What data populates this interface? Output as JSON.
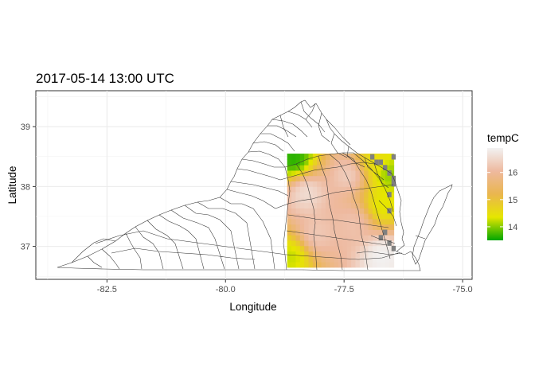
{
  "title": "2017-05-14 13:00 UTC",
  "xlabel": "Longitude",
  "ylabel": "Latitude",
  "x_ticks": [
    -82.5,
    -80.0,
    -77.5,
    -75.0
  ],
  "x_tick_labels": [
    "-82.5",
    "-80.0",
    "-77.5",
    "-75.0"
  ],
  "y_ticks": [
    37,
    38,
    39
  ],
  "y_tick_labels": [
    "37",
    "38",
    "39"
  ],
  "xlim": [
    -84.0,
    -74.8
  ],
  "ylim": [
    36.45,
    39.6
  ],
  "legend": {
    "title": "tempC",
    "ticks": [
      14,
      15,
      16
    ],
    "tick_labels": [
      "14",
      "15",
      "16"
    ],
    "range": [
      13.5,
      16.9
    ],
    "colors": [
      "#00A600",
      "#E6E600",
      "#EAB64E",
      "#EEB99F",
      "#F2F2F2"
    ]
  },
  "chart_data": {
    "type": "heatmap",
    "variable": "tempC",
    "grid_extent": {
      "lon": [
        -78.7,
        -76.45
      ],
      "lat": [
        36.65,
        38.55
      ]
    },
    "grid_cell": 0.09,
    "field_hotspots": [
      {
        "lon": -78.3,
        "lat": 37.9,
        "temp": 16.6
      },
      {
        "lon": -77.4,
        "lat": 38.2,
        "temp": 16.4
      },
      {
        "lon": -78.1,
        "lat": 37.2,
        "temp": 16.3
      },
      {
        "lon": -76.7,
        "lat": 36.85,
        "temp": 16.9
      },
      {
        "lon": -77.3,
        "lat": 37.4,
        "temp": 16.2
      }
    ],
    "field_coolspots": [
      {
        "lon": -78.55,
        "lat": 38.45,
        "temp": 13.6
      },
      {
        "lon": -76.55,
        "lat": 38.2,
        "temp": 14.0
      },
      {
        "lon": -76.7,
        "lat": 37.7,
        "temp": 14.3
      },
      {
        "lon": -78.6,
        "lat": 36.85,
        "temp": 14.2
      },
      {
        "lon": -76.85,
        "lat": 38.45,
        "temp": 14.5
      }
    ],
    "missing_cells": [
      [
        -76.95,
        38.45
      ],
      [
        -76.86,
        38.36
      ],
      [
        -76.77,
        38.36
      ],
      [
        -76.68,
        38.27
      ],
      [
        -76.59,
        38.18
      ],
      [
        -76.5,
        38.45
      ],
      [
        -76.5,
        38.0
      ],
      [
        -76.59,
        37.82
      ],
      [
        -76.59,
        37.55
      ],
      [
        -76.68,
        37.19
      ],
      [
        -76.5,
        36.92
      ],
      [
        -76.59,
        37.01
      ],
      [
        -76.77,
        37.1
      ],
      [
        -76.5,
        38.09
      ]
    ]
  }
}
